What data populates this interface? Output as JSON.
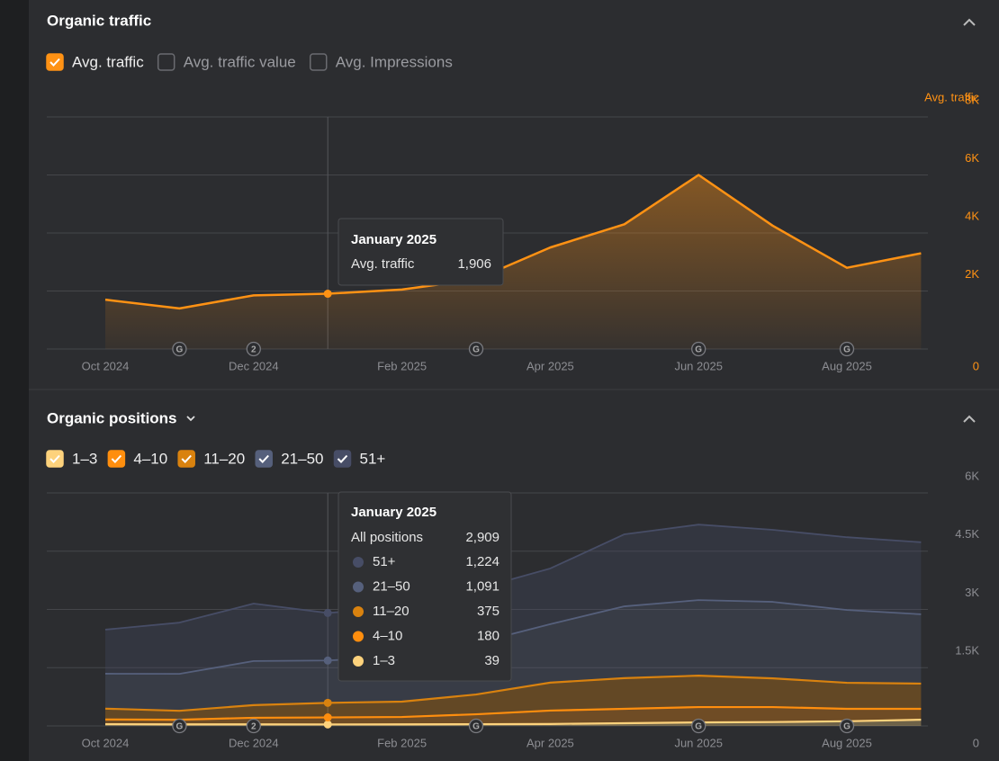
{
  "chart_data": [
    {
      "type": "area",
      "title": "Organic traffic",
      "toggles": [
        "Avg. traffic value",
        "Avg. Impressions"
      ],
      "categories": [
        "Oct 2024",
        null,
        "Dec 2024",
        null,
        "Feb 2025",
        null,
        "Apr 2025",
        null,
        "Jun 2025",
        null,
        "Aug 2025",
        null
      ],
      "series": [
        {
          "name": "Avg. traffic",
          "color": "#ff9214",
          "values": [
            1700,
            1400,
            1850,
            1906,
            2050,
            2400,
            3500,
            4300,
            6000,
            4250,
            2800,
            3300
          ]
        }
      ],
      "ylim": [
        0,
        8000
      ],
      "yticks": [
        0,
        {
          "value": 2000,
          "label": "2K"
        },
        {
          "value": 4000,
          "label": "4K"
        },
        {
          "value": 6000,
          "label": "6K"
        },
        {
          "value": 8000,
          "label": "8K"
        }
      ],
      "grid": true,
      "annotations": [
        "G",
        "2",
        "G",
        "G",
        "G"
      ],
      "tooltip": {
        "title": "January 2025",
        "value_label": "1,906"
      }
    },
    {
      "type": "stacked_area",
      "title": "Organic positions",
      "categories": [
        "Oct 2024",
        null,
        "Dec 2024",
        null,
        "Feb 2025",
        null,
        "Apr 2025",
        null,
        "Jun 2025",
        null,
        "Aug 2025",
        null
      ],
      "series": [
        {
          "name": "1–3",
          "color": "#fdd27c",
          "values": [
            45,
            40,
            40,
            39,
            40,
            45,
            50,
            70,
            90,
            100,
            120,
            160
          ]
        },
        {
          "name": "4–10",
          "color": "#ff8e0e",
          "values": [
            120,
            120,
            170,
            180,
            190,
            255,
            345,
            370,
            395,
            385,
            320,
            280
          ]
        },
        {
          "name": "11–20",
          "color": "#d9820f",
          "values": [
            280,
            230,
            325,
            375,
            395,
            510,
            720,
            790,
            810,
            740,
            670,
            650
          ]
        },
        {
          "name": "21–50",
          "color": "#56607c",
          "values": [
            900,
            950,
            1135,
            1091,
            1160,
            1320,
            1505,
            1850,
            1945,
            1970,
            1875,
            1785
          ]
        },
        {
          "name": "51+",
          "color": "#474d66",
          "values": [
            1135,
            1320,
            1480,
            1224,
            1275,
            1390,
            1435,
            1855,
            1945,
            1855,
            1875,
            1855
          ]
        }
      ],
      "ylim": [
        0,
        6000
      ],
      "yticks": [
        0,
        {
          "value": 1500,
          "label": "1.5K"
        },
        {
          "value": 3000,
          "label": "3K"
        },
        {
          "value": 4500,
          "label": "4.5K"
        },
        {
          "value": 6000,
          "label": "6K"
        }
      ],
      "grid": true,
      "annotations": [
        "G",
        "2",
        "G",
        "G",
        "G"
      ],
      "tooltip": {
        "title": "January 2025",
        "total_label": "All positions",
        "total": "2,909",
        "value_labels": [
          "39",
          "180",
          "375",
          "1,091",
          "1,224"
        ]
      }
    }
  ]
}
